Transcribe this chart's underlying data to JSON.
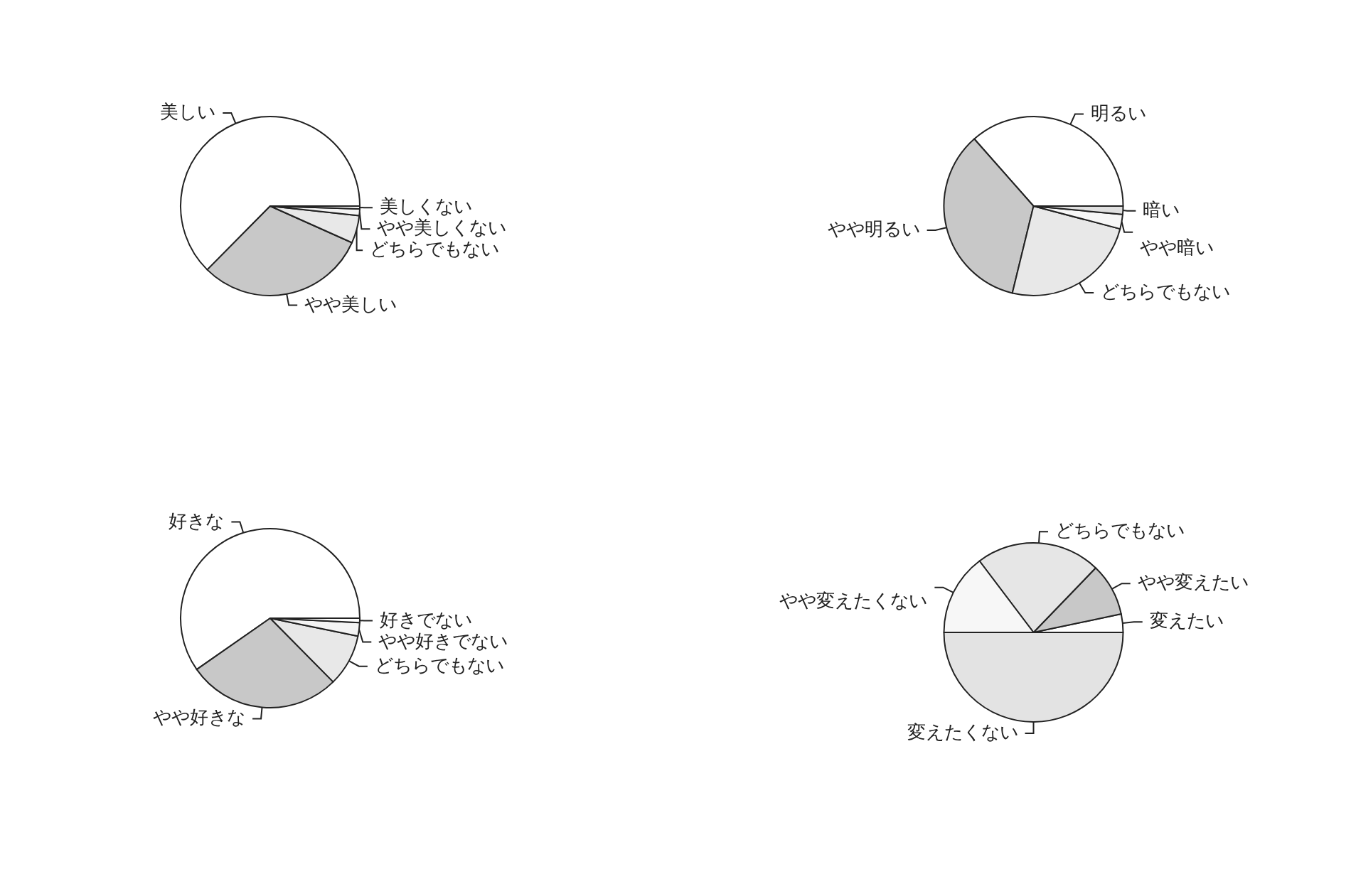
{
  "chart_data": [
    {
      "type": "pie",
      "categories": [
        "美しい",
        "やや美しい",
        "どちらでもない",
        "やや美しくない",
        "美しくない"
      ],
      "values": [
        62.6,
        30.7,
        5,
        1.2,
        0.5
      ],
      "colors": [
        "#ffffff",
        "#c8c8c8",
        "#e8e8e8",
        "#f4f4f4",
        "#ffffff"
      ]
    },
    {
      "type": "pie",
      "categories": [
        "明るい",
        "やや明るい",
        "どちらでもない",
        "やや暗い",
        "暗い"
      ],
      "values": [
        36.5,
        34.7,
        24.7,
        2.6,
        1.5
      ],
      "colors": [
        "#ffffff",
        "#c8c8c8",
        "#e8e8e8",
        "#f7f7f7",
        "#e0e0e0"
      ]
    },
    {
      "type": "pie",
      "categories": [
        "好きな",
        "やや好きな",
        "どちらでもない",
        "やや好きでない",
        "好きでない"
      ],
      "values": [
        59.7,
        27.7,
        9.4,
        2.4,
        0.8
      ],
      "colors": [
        "#ffffff",
        "#c8c8c8",
        "#e8e8e8",
        "#f4f4f4",
        "#ffffff"
      ]
    },
    {
      "type": "pie",
      "categories": [
        "変えたい",
        "やや変えたい",
        "どちらでもない",
        "やや変えたくない",
        "変えたくない"
      ],
      "values": [
        3.3,
        9.5,
        22.5,
        14.7,
        50
      ],
      "colors": [
        "#ffffff",
        "#c8c8c8",
        "#e6e6e6",
        "#f7f7f7",
        "#e3e3e3"
      ]
    }
  ]
}
